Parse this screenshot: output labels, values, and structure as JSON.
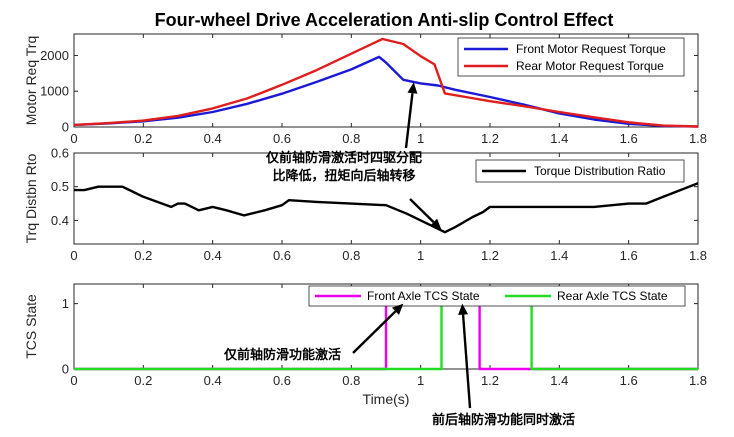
{
  "title": "Four-wheel Drive Acceleration Anti-slip Control Effect",
  "colors": {
    "blue": "#1a1ad6",
    "red": "#e01e1e",
    "black": "#000000",
    "magenta": "#f000f0",
    "green": "#22dd22"
  },
  "chart_data": [
    {
      "type": "line",
      "ylabel": "Motor Req Trq",
      "xlabel": "",
      "xlim": [
        0,
        1.8
      ],
      "ylim": [
        0,
        2600
      ],
      "xticks": [
        "0",
        "0.2",
        "0.4",
        "0.6",
        "0.8",
        "1",
        "1.2",
        "1.4",
        "1.6",
        "1.8"
      ],
      "yticks": [
        "0",
        "1000",
        "2000"
      ],
      "legend_position": "top-right",
      "series": [
        {
          "name": "Front Motor Request Torque",
          "color": "#1a1ad6",
          "x": [
            0,
            0.1,
            0.2,
            0.3,
            0.4,
            0.5,
            0.6,
            0.7,
            0.8,
            0.88,
            0.9,
            0.95,
            1.0,
            1.05,
            1.1,
            1.2,
            1.3,
            1.4,
            1.5,
            1.6,
            1.7,
            1.8
          ],
          "y": [
            60,
            100,
            160,
            260,
            420,
            650,
            930,
            1260,
            1610,
            1960,
            1800,
            1320,
            1220,
            1160,
            1040,
            840,
            620,
            380,
            210,
            90,
            30,
            10
          ]
        },
        {
          "name": "Rear Motor Request Torque",
          "color": "#e01e1e",
          "x": [
            0,
            0.1,
            0.2,
            0.3,
            0.4,
            0.5,
            0.6,
            0.7,
            0.8,
            0.89,
            0.95,
            1.0,
            1.04,
            1.07,
            1.13,
            1.2,
            1.3,
            1.4,
            1.5,
            1.6,
            1.7,
            1.8
          ],
          "y": [
            60,
            110,
            180,
            310,
            520,
            800,
            1180,
            1590,
            2050,
            2460,
            2320,
            1980,
            1750,
            940,
            840,
            720,
            580,
            420,
            270,
            130,
            40,
            15
          ]
        }
      ]
    },
    {
      "type": "line",
      "ylabel": "Trq Distbn Rto",
      "xlabel": "",
      "xlim": [
        0,
        1.8
      ],
      "ylim": [
        0.33,
        0.6
      ],
      "xticks": [
        "0",
        "0.2",
        "0.4",
        "0.6",
        "0.8",
        "1",
        "1.2",
        "1.4",
        "1.6",
        "1.8"
      ],
      "yticks": [
        "0.4",
        "0.5",
        "0.6"
      ],
      "legend_position": "top-right",
      "series": [
        {
          "name": "Torque Distribution Ratio",
          "color": "#000000",
          "x": [
            0,
            0.03,
            0.07,
            0.14,
            0.2,
            0.28,
            0.3,
            0.32,
            0.36,
            0.4,
            0.44,
            0.49,
            0.55,
            0.6,
            0.62,
            0.7,
            0.8,
            0.9,
            0.96,
            1.0,
            1.05,
            1.07,
            1.1,
            1.15,
            1.18,
            1.2,
            1.4,
            1.5,
            1.6,
            1.65,
            1.7,
            1.8
          ],
          "y": [
            0.49,
            0.49,
            0.5,
            0.5,
            0.47,
            0.44,
            0.45,
            0.45,
            0.43,
            0.44,
            0.43,
            0.415,
            0.43,
            0.445,
            0.46,
            0.455,
            0.45,
            0.445,
            0.42,
            0.4,
            0.375,
            0.365,
            0.38,
            0.41,
            0.425,
            0.44,
            0.44,
            0.44,
            0.45,
            0.45,
            0.47,
            0.51
          ]
        }
      ]
    },
    {
      "type": "line",
      "ylabel": "TCS State",
      "xlabel": "Time(s)",
      "xlim": [
        0,
        1.8
      ],
      "ylim": [
        0,
        1.3
      ],
      "xticks": [
        "0",
        "0.2",
        "0.4",
        "0.6",
        "0.8",
        "1",
        "1.2",
        "1.4",
        "1.6",
        "1.8"
      ],
      "yticks": [
        "0",
        "1"
      ],
      "legend_position": "top-right",
      "series": [
        {
          "name": "Front Axle TCS State",
          "color": "#f000f0",
          "x": [
            0,
            0.9,
            0.9,
            1.17,
            1.17,
            1.8
          ],
          "y": [
            0,
            0,
            1,
            1,
            0,
            0
          ]
        },
        {
          "name": "Rear Axle TCS State",
          "color": "#22dd22",
          "x": [
            0,
            1.06,
            1.06,
            1.32,
            1.32,
            1.8
          ],
          "y": [
            0,
            0,
            1,
            1,
            0,
            0
          ]
        }
      ]
    }
  ],
  "annotations": [
    {
      "text_lines": [
        "仅前轴防滑激活时四驱分配",
        "比降低，扭矩向后轴转移"
      ],
      "panel": 0,
      "arrow_to": [
        0.98,
        1250
      ]
    },
    {
      "text_lines": [
        "仅前轴防滑功能激活"
      ],
      "panel": 2,
      "arrow_to": [
        0.95,
        1.0
      ]
    },
    {
      "text_lines": [
        "前后轴防滑功能同时激活"
      ],
      "panel": 2,
      "arrow_to": [
        1.12,
        1.0
      ]
    }
  ]
}
